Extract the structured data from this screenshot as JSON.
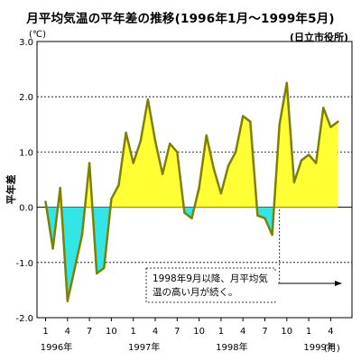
{
  "chart_data": {
    "type": "area",
    "title": "月平均気温の平年差の推移(1996年1月～1999年5月)",
    "source": "(日立市役所)",
    "ylabel": "平年差",
    "y_unit": "(℃)",
    "x_unit": "(月)",
    "ylim": [
      -2.0,
      3.0
    ],
    "y_ticks": [
      "3.0",
      "2.0",
      "1.0",
      "0.0",
      "-1.0",
      "-2.0"
    ],
    "grid": "horizontal-dotted",
    "x_month_ticks": [
      "1",
      "4",
      "7",
      "10",
      "1",
      "4",
      "7",
      "10",
      "1",
      "4",
      "7",
      "10",
      "1",
      "4"
    ],
    "year_labels": [
      "1996年",
      "1997年",
      "1998年",
      "1999年"
    ],
    "series": [
      {
        "values": [
          0.1,
          -0.75,
          0.35,
          -1.7,
          -1.1,
          -0.5,
          0.8,
          -1.2,
          -1.1,
          0.15,
          0.4,
          1.35,
          0.8,
          1.2,
          1.95,
          1.2,
          0.6,
          1.15,
          1.0,
          -0.1,
          -0.2,
          0.35,
          1.3,
          0.7,
          0.25,
          0.75,
          1.0,
          1.65,
          1.55,
          -0.15,
          -0.2,
          -0.5,
          1.5,
          2.25,
          0.45,
          0.85,
          0.95,
          0.8,
          1.8,
          1.45,
          1.55
        ]
      }
    ],
    "colors": {
      "positive": "#ffff33",
      "negative": "#33e6e6",
      "line": "#808000"
    },
    "annotation": {
      "text": "1998年9月以降、月平均気温の高い月が続く。"
    }
  }
}
